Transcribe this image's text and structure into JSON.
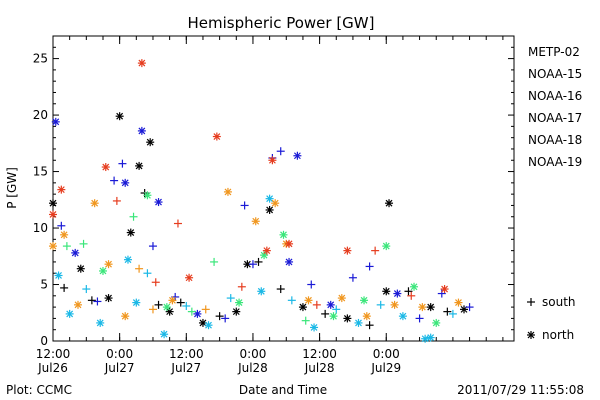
{
  "chart_data": {
    "type": "scatter",
    "title": "Hemispheric Power [GW]",
    "ylabel": "P [GW]",
    "xlabel": "Date and Time",
    "ylim": [
      0,
      27
    ],
    "yticks": [
      0,
      5,
      10,
      15,
      20,
      25
    ],
    "xlim": [
      "2011-07-26 12:00",
      "2011-07-29 23:00"
    ],
    "xticks": [
      {
        "top": "12:00",
        "bottom": "Jul26",
        "t": "2011-07-26 12:00"
      },
      {
        "top": "0:00",
        "bottom": "Jul27",
        "t": "2011-07-27 00:00"
      },
      {
        "top": "12:00",
        "bottom": "Jul27",
        "t": "2011-07-27 12:00"
      },
      {
        "top": "0:00",
        "bottom": "Jul28",
        "t": "2011-07-28 00:00"
      },
      {
        "top": "12:00",
        "bottom": "Jul28",
        "t": "2011-07-28 12:00"
      },
      {
        "top": "0:00",
        "bottom": "Jul29",
        "t": "2011-07-29 00:00"
      }
    ],
    "legend_position": "right",
    "marker_legend": [
      {
        "symbol": "+",
        "label": "south"
      },
      {
        "symbol": "*",
        "label": "north"
      }
    ],
    "series": [
      {
        "name": "METP-02",
        "color": "#000000",
        "points": [
          {
            "t": "2011-07-26 12:00",
            "y": 12.2,
            "m": "*"
          },
          {
            "t": "2011-07-26 14:00",
            "y": 4.7,
            "m": "+"
          },
          {
            "t": "2011-07-26 17:00",
            "y": 6.4,
            "m": "*"
          },
          {
            "t": "2011-07-26 19:00",
            "y": 3.6,
            "m": "+"
          },
          {
            "t": "2011-07-26 22:00",
            "y": 3.8,
            "m": "*"
          },
          {
            "t": "2011-07-27 00:00",
            "y": 19.9,
            "m": "*"
          },
          {
            "t": "2011-07-27 02:00",
            "y": 9.6,
            "m": "*"
          },
          {
            "t": "2011-07-27 03:30",
            "y": 15.5,
            "m": "*"
          },
          {
            "t": "2011-07-27 04:30",
            "y": 13.1,
            "m": "+"
          },
          {
            "t": "2011-07-27 05:30",
            "y": 17.6,
            "m": "*"
          },
          {
            "t": "2011-07-27 07:00",
            "y": 3.2,
            "m": "+"
          },
          {
            "t": "2011-07-27 09:00",
            "y": 2.6,
            "m": "*"
          },
          {
            "t": "2011-07-27 11:00",
            "y": 3.4,
            "m": "+"
          },
          {
            "t": "2011-07-27 15:00",
            "y": 1.6,
            "m": "*"
          },
          {
            "t": "2011-07-27 18:00",
            "y": 2.2,
            "m": "+"
          },
          {
            "t": "2011-07-27 21:00",
            "y": 2.6,
            "m": "*"
          },
          {
            "t": "2011-07-27 23:00",
            "y": 6.8,
            "m": "*"
          },
          {
            "t": "2011-07-28 01:00",
            "y": 7.0,
            "m": "+"
          },
          {
            "t": "2011-07-28 03:00",
            "y": 11.6,
            "m": "*"
          },
          {
            "t": "2011-07-28 05:00",
            "y": 4.6,
            "m": "+"
          },
          {
            "t": "2011-07-28 09:00",
            "y": 3.0,
            "m": "*"
          },
          {
            "t": "2011-07-28 13:00",
            "y": 2.4,
            "m": "+"
          },
          {
            "t": "2011-07-28 17:00",
            "y": 2.0,
            "m": "*"
          },
          {
            "t": "2011-07-28 21:00",
            "y": 1.4,
            "m": "+"
          },
          {
            "t": "2011-07-29 00:00",
            "y": 4.4,
            "m": "*"
          },
          {
            "t": "2011-07-29 00:30",
            "y": 12.2,
            "m": "*"
          },
          {
            "t": "2011-07-29 04:00",
            "y": 4.4,
            "m": "+"
          },
          {
            "t": "2011-07-29 08:00",
            "y": 3.0,
            "m": "*"
          },
          {
            "t": "2011-07-29 11:00",
            "y": 2.6,
            "m": "+"
          },
          {
            "t": "2011-07-29 14:00",
            "y": 2.8,
            "m": "*"
          }
        ]
      },
      {
        "name": "NOAA-15",
        "color": "#1a1ad6",
        "points": [
          {
            "t": "2011-07-26 12:30",
            "y": 19.4,
            "m": "*"
          },
          {
            "t": "2011-07-26 13:30",
            "y": 10.2,
            "m": "+"
          },
          {
            "t": "2011-07-26 16:00",
            "y": 7.8,
            "m": "*"
          },
          {
            "t": "2011-07-26 20:00",
            "y": 3.5,
            "m": "+"
          },
          {
            "t": "2011-07-26 23:00",
            "y": 14.2,
            "m": "+"
          },
          {
            "t": "2011-07-27 00:30",
            "y": 15.7,
            "m": "+"
          },
          {
            "t": "2011-07-27 01:00",
            "y": 14.0,
            "m": "*"
          },
          {
            "t": "2011-07-27 04:00",
            "y": 18.6,
            "m": "*"
          },
          {
            "t": "2011-07-27 06:00",
            "y": 8.4,
            "m": "+"
          },
          {
            "t": "2011-07-27 07:00",
            "y": 12.3,
            "m": "*"
          },
          {
            "t": "2011-07-27 10:00",
            "y": 3.9,
            "m": "+"
          },
          {
            "t": "2011-07-27 14:00",
            "y": 2.4,
            "m": "*"
          },
          {
            "t": "2011-07-27 19:00",
            "y": 2.0,
            "m": "+"
          },
          {
            "t": "2011-07-27 22:30",
            "y": 12.0,
            "m": "+"
          },
          {
            "t": "2011-07-28 00:00",
            "y": 6.8,
            "m": "+"
          },
          {
            "t": "2011-07-28 03:30",
            "y": 16.2,
            "m": "+"
          },
          {
            "t": "2011-07-28 05:00",
            "y": 16.8,
            "m": "+"
          },
          {
            "t": "2011-07-28 06:30",
            "y": 7.0,
            "m": "*"
          },
          {
            "t": "2011-07-28 08:00",
            "y": 16.4,
            "m": "*"
          },
          {
            "t": "2011-07-28 10:30",
            "y": 5.0,
            "m": "+"
          },
          {
            "t": "2011-07-28 14:00",
            "y": 3.2,
            "m": "*"
          },
          {
            "t": "2011-07-28 18:00",
            "y": 5.6,
            "m": "+"
          },
          {
            "t": "2011-07-28 21:00",
            "y": 6.6,
            "m": "+"
          },
          {
            "t": "2011-07-29 02:00",
            "y": 4.2,
            "m": "*"
          },
          {
            "t": "2011-07-29 06:00",
            "y": 2.0,
            "m": "+"
          },
          {
            "t": "2011-07-29 10:00",
            "y": 4.2,
            "m": "+"
          },
          {
            "t": "2011-07-29 15:00",
            "y": 3.0,
            "m": "+"
          }
        ]
      },
      {
        "name": "NOAA-16",
        "color": "#1ab8e6",
        "points": [
          {
            "t": "2011-07-26 13:00",
            "y": 5.8,
            "m": "*"
          },
          {
            "t": "2011-07-26 15:00",
            "y": 2.4,
            "m": "*"
          },
          {
            "t": "2011-07-26 18:00",
            "y": 4.6,
            "m": "+"
          },
          {
            "t": "2011-07-26 20:30",
            "y": 1.6,
            "m": "*"
          },
          {
            "t": "2011-07-27 01:30",
            "y": 7.2,
            "m": "*"
          },
          {
            "t": "2011-07-27 03:00",
            "y": 3.4,
            "m": "*"
          },
          {
            "t": "2011-07-27 05:00",
            "y": 6.0,
            "m": "+"
          },
          {
            "t": "2011-07-27 08:00",
            "y": 0.6,
            "m": "*"
          },
          {
            "t": "2011-07-27 12:00",
            "y": 3.1,
            "m": "+"
          },
          {
            "t": "2011-07-27 16:00",
            "y": 1.4,
            "m": "*"
          },
          {
            "t": "2011-07-27 20:00",
            "y": 3.8,
            "m": "+"
          },
          {
            "t": "2011-07-28 01:30",
            "y": 4.4,
            "m": "*"
          },
          {
            "t": "2011-07-28 03:00",
            "y": 12.6,
            "m": "*"
          },
          {
            "t": "2011-07-28 07:00",
            "y": 3.6,
            "m": "+"
          },
          {
            "t": "2011-07-28 11:00",
            "y": 1.2,
            "m": "*"
          },
          {
            "t": "2011-07-28 15:00",
            "y": 2.8,
            "m": "+"
          },
          {
            "t": "2011-07-28 19:00",
            "y": 1.6,
            "m": "*"
          },
          {
            "t": "2011-07-28 23:00",
            "y": 3.2,
            "m": "+"
          },
          {
            "t": "2011-07-29 03:00",
            "y": 2.2,
            "m": "*"
          },
          {
            "t": "2011-07-29 07:00",
            "y": 0.2,
            "m": "*"
          },
          {
            "t": "2011-07-29 08:00",
            "y": 0.3,
            "m": "*"
          },
          {
            "t": "2011-07-29 12:00",
            "y": 2.4,
            "m": "+"
          }
        ]
      },
      {
        "name": "NOAA-17",
        "color": "#3ae67a",
        "points": [
          {
            "t": "2011-07-26 14:30",
            "y": 8.4,
            "m": "+"
          },
          {
            "t": "2011-07-26 17:30",
            "y": 8.6,
            "m": "+"
          },
          {
            "t": "2011-07-26 21:00",
            "y": 6.2,
            "m": "*"
          },
          {
            "t": "2011-07-27 02:30",
            "y": 11.0,
            "m": "+"
          },
          {
            "t": "2011-07-27 05:00",
            "y": 12.9,
            "m": "*"
          },
          {
            "t": "2011-07-27 08:30",
            "y": 3.0,
            "m": "*"
          },
          {
            "t": "2011-07-27 13:00",
            "y": 2.6,
            "m": "+"
          },
          {
            "t": "2011-07-27 17:00",
            "y": 7.0,
            "m": "+"
          },
          {
            "t": "2011-07-27 21:30",
            "y": 3.4,
            "m": "*"
          },
          {
            "t": "2011-07-28 02:00",
            "y": 7.6,
            "m": "*"
          },
          {
            "t": "2011-07-28 05:30",
            "y": 9.4,
            "m": "*"
          },
          {
            "t": "2011-07-28 09:30",
            "y": 1.8,
            "m": "+"
          },
          {
            "t": "2011-07-28 14:30",
            "y": 2.2,
            "m": "*"
          },
          {
            "t": "2011-07-28 20:00",
            "y": 3.6,
            "m": "*"
          },
          {
            "t": "2011-07-29 00:00",
            "y": 8.4,
            "m": "*"
          },
          {
            "t": "2011-07-29 05:00",
            "y": 4.8,
            "m": "*"
          },
          {
            "t": "2011-07-29 09:00",
            "y": 1.6,
            "m": "*"
          }
        ]
      },
      {
        "name": "NOAA-18",
        "color": "#f0961e",
        "points": [
          {
            "t": "2011-07-26 12:00",
            "y": 8.4,
            "m": "*"
          },
          {
            "t": "2011-07-26 14:00",
            "y": 9.4,
            "m": "*"
          },
          {
            "t": "2011-07-26 16:30",
            "y": 3.2,
            "m": "*"
          },
          {
            "t": "2011-07-26 19:30",
            "y": 12.2,
            "m": "*"
          },
          {
            "t": "2011-07-26 22:00",
            "y": 6.8,
            "m": "*"
          },
          {
            "t": "2011-07-27 01:00",
            "y": 2.2,
            "m": "*"
          },
          {
            "t": "2011-07-27 03:30",
            "y": 6.4,
            "m": "+"
          },
          {
            "t": "2011-07-27 06:00",
            "y": 2.8,
            "m": "+"
          },
          {
            "t": "2011-07-27 09:30",
            "y": 3.6,
            "m": "*"
          },
          {
            "t": "2011-07-27 15:30",
            "y": 2.8,
            "m": "+"
          },
          {
            "t": "2011-07-27 19:30",
            "y": 13.2,
            "m": "*"
          },
          {
            "t": "2011-07-28 00:30",
            "y": 10.6,
            "m": "*"
          },
          {
            "t": "2011-07-28 04:00",
            "y": 12.2,
            "m": "*"
          },
          {
            "t": "2011-07-28 06:00",
            "y": 8.6,
            "m": "*"
          },
          {
            "t": "2011-07-28 10:00",
            "y": 3.6,
            "m": "*"
          },
          {
            "t": "2011-07-28 16:00",
            "y": 3.8,
            "m": "*"
          },
          {
            "t": "2011-07-28 20:30",
            "y": 2.2,
            "m": "*"
          },
          {
            "t": "2011-07-29 01:30",
            "y": 3.2,
            "m": "*"
          },
          {
            "t": "2011-07-29 06:30",
            "y": 3.0,
            "m": "*"
          },
          {
            "t": "2011-07-29 13:00",
            "y": 3.4,
            "m": "*"
          }
        ]
      },
      {
        "name": "NOAA-19",
        "color": "#e63c1e",
        "points": [
          {
            "t": "2011-07-26 12:00",
            "y": 11.2,
            "m": "*"
          },
          {
            "t": "2011-07-26 13:30",
            "y": 13.4,
            "m": "*"
          },
          {
            "t": "2011-07-26 21:30",
            "y": 15.4,
            "m": "*"
          },
          {
            "t": "2011-07-26 23:30",
            "y": 12.4,
            "m": "+"
          },
          {
            "t": "2011-07-27 04:00",
            "y": 24.6,
            "m": "*"
          },
          {
            "t": "2011-07-27 06:30",
            "y": 5.2,
            "m": "+"
          },
          {
            "t": "2011-07-27 10:30",
            "y": 10.4,
            "m": "+"
          },
          {
            "t": "2011-07-27 12:30",
            "y": 5.6,
            "m": "*"
          },
          {
            "t": "2011-07-27 17:30",
            "y": 18.1,
            "m": "*"
          },
          {
            "t": "2011-07-27 22:00",
            "y": 4.8,
            "m": "+"
          },
          {
            "t": "2011-07-28 02:30",
            "y": 8.0,
            "m": "*"
          },
          {
            "t": "2011-07-28 03:30",
            "y": 16.0,
            "m": "*"
          },
          {
            "t": "2011-07-28 06:30",
            "y": 8.6,
            "m": "*"
          },
          {
            "t": "2011-07-28 11:30",
            "y": 3.2,
            "m": "+"
          },
          {
            "t": "2011-07-28 17:00",
            "y": 8.0,
            "m": "*"
          },
          {
            "t": "2011-07-28 22:00",
            "y": 8.0,
            "m": "+"
          },
          {
            "t": "2011-07-29 04:30",
            "y": 4.0,
            "m": "+"
          },
          {
            "t": "2011-07-29 10:30",
            "y": 4.6,
            "m": "*"
          }
        ]
      }
    ]
  },
  "footer": {
    "left": "Plot: CCMC",
    "center": "Date and Time",
    "right": "2011/07/29 11:55:08"
  }
}
